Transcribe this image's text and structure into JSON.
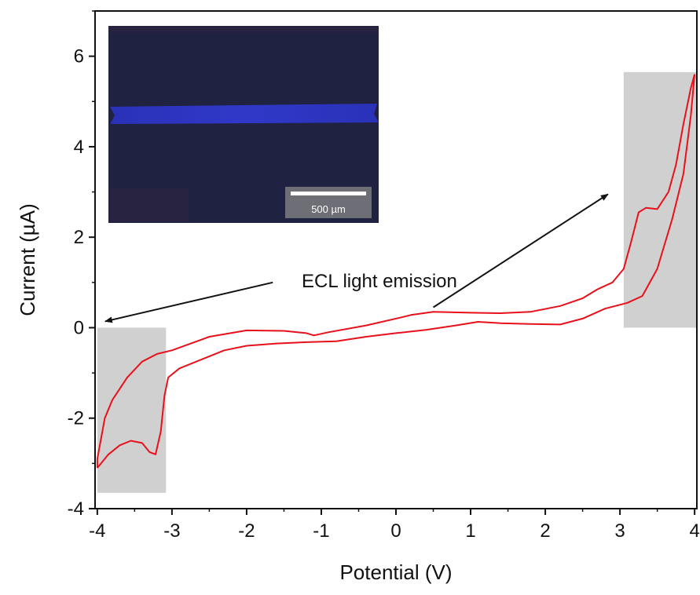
{
  "chart_data": {
    "type": "line",
    "xlabel": "Potential (V)",
    "ylabel": "Current (µA)",
    "xlim": [
      -4.03,
      4.03
    ],
    "ylim": [
      -4,
      7
    ],
    "x_ticks": [
      -4,
      -3,
      -2,
      -1,
      0,
      1,
      2,
      3,
      4
    ],
    "y_ticks": [
      -4,
      -2,
      0,
      2,
      4,
      6
    ],
    "x_tick_labels": [
      "-4",
      "-3",
      "-2",
      "-1",
      "0",
      "1",
      "2",
      "3",
      "4"
    ],
    "y_tick_labels": [
      "-4",
      "-2",
      "0",
      "2",
      "4",
      "6"
    ],
    "grid": false,
    "series_color": "#e8101a",
    "series": [
      {
        "forward_scan": [
          [
            -4.0,
            -3.1
          ],
          [
            -3.85,
            -2.8
          ],
          [
            -3.7,
            -2.6
          ],
          [
            -3.55,
            -2.5
          ],
          [
            -3.4,
            -2.55
          ],
          [
            -3.3,
            -2.75
          ],
          [
            -3.22,
            -2.8
          ],
          [
            -3.15,
            -2.3
          ],
          [
            -3.1,
            -1.5
          ],
          [
            -3.05,
            -1.1
          ],
          [
            -2.9,
            -0.9
          ],
          [
            -2.6,
            -0.7
          ],
          [
            -2.3,
            -0.5
          ],
          [
            -2.0,
            -0.4
          ],
          [
            -1.6,
            -0.35
          ],
          [
            -1.2,
            -0.32
          ],
          [
            -0.8,
            -0.3
          ],
          [
            -0.4,
            -0.2
          ],
          [
            0.0,
            -0.12
          ],
          [
            0.4,
            -0.05
          ],
          [
            0.8,
            0.05
          ],
          [
            1.1,
            0.13
          ],
          [
            1.4,
            0.1
          ],
          [
            1.8,
            0.08
          ],
          [
            2.2,
            0.07
          ],
          [
            2.5,
            0.2
          ],
          [
            2.8,
            0.42
          ],
          [
            3.1,
            0.55
          ],
          [
            3.3,
            0.7
          ],
          [
            3.5,
            1.3
          ],
          [
            3.7,
            2.4
          ],
          [
            3.85,
            3.4
          ],
          [
            3.95,
            4.7
          ],
          [
            4.0,
            5.6
          ]
        ],
        "reverse_scan": [
          [
            4.0,
            5.6
          ],
          [
            3.95,
            5.3
          ],
          [
            3.85,
            4.5
          ],
          [
            3.75,
            3.6
          ],
          [
            3.65,
            3.0
          ],
          [
            3.5,
            2.62
          ],
          [
            3.35,
            2.65
          ],
          [
            3.25,
            2.55
          ],
          [
            3.15,
            1.9
          ],
          [
            3.05,
            1.3
          ],
          [
            2.9,
            1.0
          ],
          [
            2.7,
            0.85
          ],
          [
            2.5,
            0.65
          ],
          [
            2.2,
            0.48
          ],
          [
            1.8,
            0.35
          ],
          [
            1.4,
            0.32
          ],
          [
            1.0,
            0.33
          ],
          [
            0.5,
            0.35
          ],
          [
            0.2,
            0.28
          ],
          [
            0.05,
            0.22
          ],
          [
            -0.4,
            0.05
          ],
          [
            -0.9,
            -0.1
          ],
          [
            -1.1,
            -0.17
          ],
          [
            -1.2,
            -0.12
          ],
          [
            -1.5,
            -0.07
          ],
          [
            -2.0,
            -0.06
          ],
          [
            -2.5,
            -0.2
          ],
          [
            -3.0,
            -0.5
          ],
          [
            -3.2,
            -0.58
          ],
          [
            -3.4,
            -0.75
          ],
          [
            -3.6,
            -1.1
          ],
          [
            -3.8,
            -1.6
          ],
          [
            -3.9,
            -2.0
          ],
          [
            -4.0,
            -2.9
          ],
          [
            -4.0,
            -3.1
          ]
        ]
      }
    ],
    "highlight_regions": [
      {
        "x": [
          -4.0,
          -3.08
        ],
        "y": [
          -3.65,
          0.0
        ]
      },
      {
        "x": [
          3.05,
          4.03
        ],
        "y": [
          0.0,
          5.65
        ]
      }
    ],
    "annotation": {
      "text": "ECL light emission",
      "arrows": [
        {
          "from": [
            -1.65,
            1.0
          ],
          "to": [
            -4.0,
            0.0
          ]
        },
        {
          "from": [
            0.5,
            0.45
          ],
          "to": [
            2.85,
            2.95
          ]
        }
      ]
    },
    "inset": {
      "kind": "micrograph",
      "scale_bar_label": "500 µm",
      "colors": {
        "background": "#1f2240",
        "emission_band": "#2c33b0"
      }
    }
  }
}
